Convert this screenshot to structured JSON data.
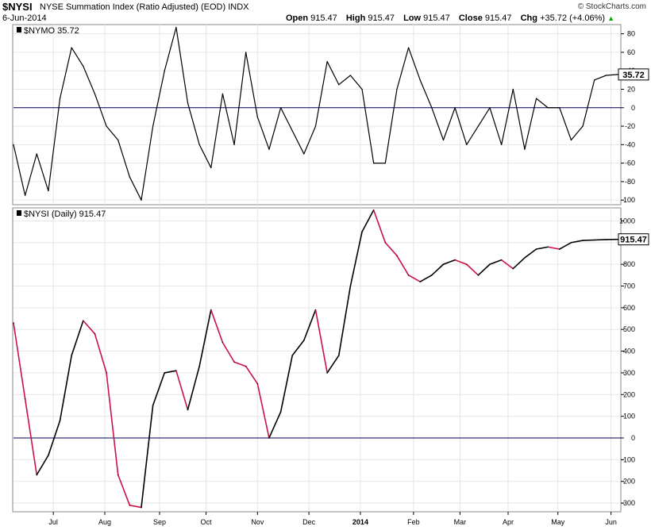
{
  "header": {
    "symbol": "$NYSI",
    "description": "NYSE Summation Index (Ratio Adjusted) (EOD)",
    "exchange": "INDX",
    "copyright": "© StockCharts.com",
    "date": "6-Jun-2014",
    "open_label": "Open",
    "open": "915.47",
    "high_label": "High",
    "high": "915.47",
    "low_label": "Low",
    "low": "915.47",
    "close_label": "Close",
    "close": "915.47",
    "chg_label": "Chg",
    "chg": "+35.72 (+4.06%)",
    "chg_arrow": "▲"
  },
  "colors": {
    "line": "#000000",
    "down": "#cc1144",
    "zero": "#000066",
    "grid": "#e6e6e6"
  },
  "chart_data": [
    {
      "type": "line",
      "panel_label": "$NYMO 35.72",
      "last_value_tag": "35.72",
      "ylim": [
        -105,
        90
      ],
      "y_ticks": [
        "80",
        "60",
        "40",
        "20",
        "0",
        "-20",
        "-40",
        "-60",
        "-80",
        "-100"
      ],
      "x_month_labels": [
        "Jul",
        "Aug",
        "Sep",
        "Oct",
        "Nov",
        "Dec",
        "2014",
        "Feb",
        "Mar",
        "Apr",
        "May",
        "Jun"
      ],
      "series": [
        {
          "x_dates": [
            "2013-06-07",
            "2013-06-14",
            "2013-06-21",
            "2013-06-28",
            "2013-07-05",
            "2013-07-12",
            "2013-07-19",
            "2013-07-26",
            "2013-08-02",
            "2013-08-09",
            "2013-08-16",
            "2013-08-23",
            "2013-08-30",
            "2013-09-06",
            "2013-09-13",
            "2013-09-20",
            "2013-09-27",
            "2013-10-04",
            "2013-10-11",
            "2013-10-18",
            "2013-10-25",
            "2013-11-01",
            "2013-11-08",
            "2013-11-15",
            "2013-11-22",
            "2013-11-29",
            "2013-12-06",
            "2013-12-13",
            "2013-12-20",
            "2013-12-27",
            "2014-01-03",
            "2014-01-10",
            "2014-01-17",
            "2014-01-24",
            "2014-01-31",
            "2014-02-07",
            "2014-02-14",
            "2014-02-21",
            "2014-02-28",
            "2014-03-07",
            "2014-03-14",
            "2014-03-21",
            "2014-03-28",
            "2014-04-04",
            "2014-04-11",
            "2014-04-18",
            "2014-04-25",
            "2014-05-02",
            "2014-05-09",
            "2014-05-16",
            "2014-05-23",
            "2014-05-30",
            "2014-06-06"
          ],
          "values": [
            -40,
            -95,
            -50,
            -90,
            10,
            65,
            45,
            15,
            -20,
            -35,
            -75,
            -100,
            -20,
            40,
            87,
            5,
            -40,
            -65,
            15,
            -40,
            60,
            -10,
            -45,
            0,
            -25,
            -50,
            -20,
            50,
            25,
            35,
            20,
            -60,
            -60,
            20,
            65,
            30,
            0,
            -35,
            0,
            -40,
            -20,
            0,
            -40,
            20,
            -45,
            10,
            0,
            0,
            -35,
            -20,
            30,
            35,
            36
          ]
        }
      ]
    },
    {
      "type": "line",
      "panel_label": "$NYSI (Daily) 915.47",
      "last_value_tag": "915.47",
      "ylim": [
        -340,
        1060
      ],
      "y_ticks": [
        "1000",
        "900",
        "800",
        "700",
        "600",
        "500",
        "400",
        "300",
        "200",
        "100",
        "0",
        "-100",
        "-200",
        "-300"
      ],
      "x_month_labels": [
        "Jul",
        "Aug",
        "Sep",
        "Oct",
        "Nov",
        "Dec",
        "2014",
        "Feb",
        "Mar",
        "Apr",
        "May",
        "Jun"
      ],
      "series": [
        {
          "x_dates": [
            "2013-06-07",
            "2013-06-14",
            "2013-06-21",
            "2013-06-28",
            "2013-07-05",
            "2013-07-12",
            "2013-07-19",
            "2013-07-26",
            "2013-08-02",
            "2013-08-09",
            "2013-08-16",
            "2013-08-23",
            "2013-08-30",
            "2013-09-06",
            "2013-09-13",
            "2013-09-20",
            "2013-09-27",
            "2013-10-04",
            "2013-10-11",
            "2013-10-18",
            "2013-10-25",
            "2013-11-01",
            "2013-11-08",
            "2013-11-15",
            "2013-11-22",
            "2013-11-29",
            "2013-12-06",
            "2013-12-13",
            "2013-12-20",
            "2013-12-27",
            "2014-01-03",
            "2014-01-10",
            "2014-01-17",
            "2014-01-24",
            "2014-01-31",
            "2014-02-07",
            "2014-02-14",
            "2014-02-21",
            "2014-02-28",
            "2014-03-07",
            "2014-03-14",
            "2014-03-21",
            "2014-03-28",
            "2014-04-04",
            "2014-04-11",
            "2014-04-18",
            "2014-04-25",
            "2014-05-02",
            "2014-05-09",
            "2014-05-16",
            "2014-05-23",
            "2014-05-30",
            "2014-06-06"
          ],
          "values": [
            530,
            180,
            -170,
            -80,
            80,
            380,
            540,
            480,
            300,
            -170,
            -310,
            -320,
            150,
            300,
            310,
            130,
            330,
            590,
            440,
            350,
            330,
            250,
            0,
            120,
            380,
            450,
            590,
            300,
            380,
            700,
            950,
            1050,
            900,
            840,
            750,
            720,
            750,
            800,
            820,
            800,
            750,
            800,
            820,
            780,
            830,
            870,
            880,
            870,
            900,
            910,
            912,
            914,
            915
          ]
        }
      ]
    }
  ]
}
